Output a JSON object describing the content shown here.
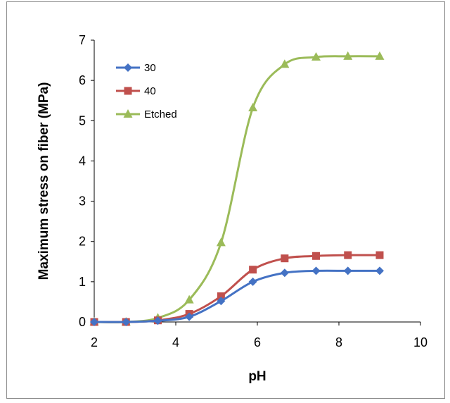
{
  "chart_data": {
    "type": "line",
    "xlabel": "pH",
    "ylabel": "Maximum stress on fiber (MPa)",
    "xlim": [
      2,
      10
    ],
    "ylim": [
      0,
      7
    ],
    "xticks": [
      "2",
      "4",
      "6",
      "8",
      "10"
    ],
    "yticks": [
      "0",
      "1",
      "2",
      "3",
      "4",
      "5",
      "6",
      "7"
    ],
    "grid": false,
    "legend_position": "top-left",
    "series": [
      {
        "name": "30",
        "color": "#4472c4",
        "marker": "diamond",
        "x": [
          2.0,
          2.78,
          3.56,
          4.33,
          5.11,
          5.89,
          6.67,
          7.44,
          8.22,
          9.0
        ],
        "y": [
          0.0,
          0.0,
          0.03,
          0.13,
          0.52,
          1.0,
          1.22,
          1.27,
          1.27,
          1.27
        ]
      },
      {
        "name": "40",
        "color": "#c0504d",
        "marker": "square",
        "x": [
          2.0,
          2.78,
          3.56,
          4.33,
          5.11,
          5.89,
          6.67,
          7.44,
          8.22,
          9.0
        ],
        "y": [
          0.0,
          0.0,
          0.04,
          0.2,
          0.64,
          1.3,
          1.58,
          1.64,
          1.66,
          1.66
        ]
      },
      {
        "name": "Etched",
        "color": "#9bbb59",
        "marker": "triangle",
        "x": [
          2.0,
          2.78,
          3.56,
          4.33,
          5.11,
          5.89,
          6.67,
          7.44,
          8.22,
          9.0
        ],
        "y": [
          0.0,
          0.0,
          0.1,
          0.55,
          1.97,
          5.32,
          6.4,
          6.58,
          6.6,
          6.6
        ]
      }
    ]
  }
}
